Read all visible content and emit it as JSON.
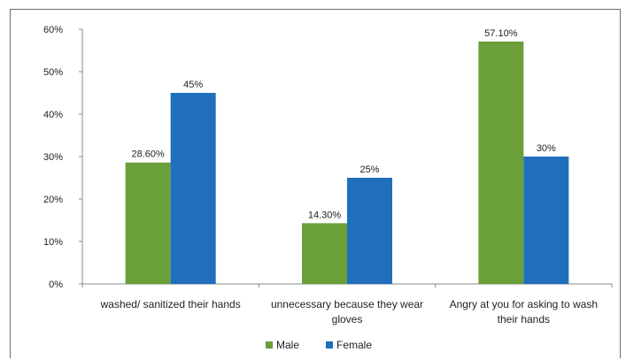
{
  "chart_data": {
    "type": "bar",
    "categories": [
      [
        "washed/ sanitized their hands"
      ],
      [
        "unnecessary because they wear",
        "gloves"
      ],
      [
        "Angry at you for asking to wash",
        "their hands"
      ]
    ],
    "series": [
      {
        "name": "Male",
        "values": [
          28.6,
          14.3,
          57.1
        ],
        "labels": [
          "28.60%",
          "14.30%",
          "57.10%"
        ],
        "color": "#6a9f3a"
      },
      {
        "name": "Female",
        "values": [
          45,
          25,
          30
        ],
        "labels": [
          "45%",
          "25%",
          "30%"
        ],
        "color": "#1f6fbd"
      }
    ],
    "yticks": [
      "0%",
      "10%",
      "20%",
      "30%",
      "40%",
      "50%",
      "60%"
    ],
    "ylim": [
      0,
      60
    ],
    "grid": false,
    "legend_position": "bottom"
  }
}
